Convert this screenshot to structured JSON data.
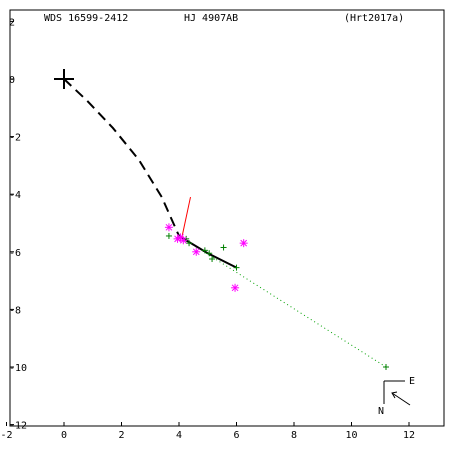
{
  "header": {
    "wds_label": "WDS 16599-2412",
    "pair_label": "HJ 4907AB",
    "ref_label": "(Hrt2017a)"
  },
  "compass": {
    "east_label": "E",
    "north_label": "N"
  },
  "chart_data": {
    "type": "scatter",
    "title": "",
    "xlabel": "",
    "ylabel": "",
    "xlim": [
      -2,
      13.5
    ],
    "ylim": [
      -12,
      2
    ],
    "x_ticks": [
      -2,
      0,
      2,
      4,
      6,
      8,
      10,
      12
    ],
    "y_ticks": [
      2,
      0,
      -2,
      -4,
      -6,
      -8,
      -10,
      -12
    ],
    "primary_marker": {
      "x": 0,
      "y": 0
    },
    "orbit_dashed": [
      [
        0,
        0
      ],
      [
        0.8,
        -0.75
      ],
      [
        1.7,
        -1.7
      ],
      [
        2.6,
        -2.8
      ],
      [
        3.4,
        -4.1
      ],
      [
        4.0,
        -5.45
      ]
    ],
    "orbit_solid": [
      [
        4.0,
        -5.45
      ],
      [
        5.0,
        -6.05
      ],
      [
        6.0,
        -6.55
      ]
    ],
    "measurement_trail": [
      [
        4.0,
        -5.45
      ],
      [
        11.2,
        -10.0
      ]
    ],
    "observations_plus": [
      [
        3.65,
        -5.45
      ],
      [
        4.25,
        -5.55
      ],
      [
        4.35,
        -5.7
      ],
      [
        4.9,
        -5.95
      ],
      [
        5.05,
        -6.05
      ],
      [
        5.15,
        -6.25
      ],
      [
        5.55,
        -5.85
      ],
      [
        6.0,
        -6.55
      ],
      [
        11.2,
        -10.0
      ]
    ],
    "observations_star": [
      [
        3.65,
        -5.15
      ],
      [
        3.95,
        -5.55
      ],
      [
        4.05,
        -5.5
      ],
      [
        4.15,
        -5.6
      ],
      [
        4.6,
        -6.0
      ],
      [
        5.95,
        -7.25
      ],
      [
        6.25,
        -5.7
      ]
    ],
    "residual_line": [
      [
        4.1,
        -5.5
      ],
      [
        4.4,
        -4.1
      ]
    ],
    "colors": {
      "orbit": "#000000",
      "plus_marker": "#008000",
      "star_marker": "#ff00ff",
      "residual": "#ff0000",
      "trail": "#00a000",
      "frame": "#000000"
    }
  }
}
